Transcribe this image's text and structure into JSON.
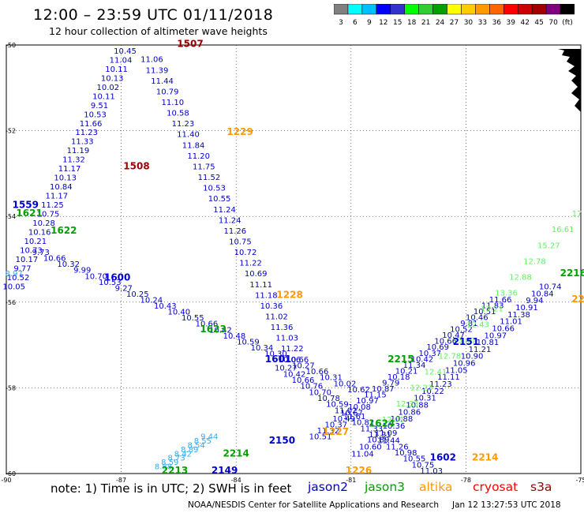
{
  "header": {
    "title": "12:00 – 23:59 UTC 01/11/2018",
    "subtitle": "12 hour collection of altimeter wave heights"
  },
  "colorbar": {
    "colors": [
      "#808080",
      "#00ffff",
      "#00bfff",
      "#0000ff",
      "#3333cc",
      "#00ff00",
      "#33cc33",
      "#00a000",
      "#ffff00",
      "#ffcc00",
      "#ff9900",
      "#ff6600",
      "#ff0000",
      "#cc0000",
      "#a00000",
      "#800080",
      "#000000"
    ],
    "labels": [
      "3",
      "6",
      "9",
      "12",
      "15",
      "18",
      "21",
      "24",
      "27",
      "30",
      "33",
      "36",
      "39",
      "42",
      "45",
      "70",
      "(ft)"
    ]
  },
  "map": {
    "lat_labels": [
      "-50",
      "-52",
      "-54",
      "-56",
      "-58",
      "-60"
    ],
    "lon_labels": [
      "-90",
      "-87",
      "-84",
      "-81",
      "-78",
      "-75"
    ],
    "lat_range": [
      -60,
      -50
    ],
    "lon_range": [
      -90,
      -75
    ]
  },
  "satellite_colors": {
    "jason2": "#0000cc",
    "jason3": "#00a000",
    "altika": "#ff9900",
    "cryosat": "#ff0000",
    "s3a": "#990000",
    "light_green": "#66ee66",
    "light_blue": "#33aaee"
  },
  "time_labels": [
    {
      "text": "1507",
      "lon": -85.2,
      "lat": -50.05,
      "sat": "s3a"
    },
    {
      "text": "1508",
      "lon": -86.6,
      "lat": -52.9,
      "sat": "s3a"
    },
    {
      "text": "1229",
      "lon": -83.9,
      "lat": -52.1,
      "sat": "altika"
    },
    {
      "text": "1228",
      "lon": -82.6,
      "lat": -55.9,
      "sat": "altika"
    },
    {
      "text": "1227",
      "lon": -81.4,
      "lat": -59.1,
      "sat": "altika"
    },
    {
      "text": "1226",
      "lon": -80.8,
      "lat": -60.0,
      "sat": "altika"
    },
    {
      "text": "2214",
      "lon": -77.5,
      "lat": -59.7,
      "sat": "altika"
    },
    {
      "text": "2215",
      "lon": -74.9,
      "lat": -56.0,
      "sat": "altika"
    },
    {
      "text": "1559",
      "lon": -89.5,
      "lat": -53.8,
      "sat": "jason2"
    },
    {
      "text": "1600",
      "lon": -87.1,
      "lat": -55.5,
      "sat": "jason2"
    },
    {
      "text": "1601",
      "lon": -82.9,
      "lat": -57.4,
      "sat": "jason2"
    },
    {
      "text": "1602",
      "lon": -78.6,
      "lat": -59.7,
      "sat": "jason2"
    },
    {
      "text": "2149",
      "lon": -84.3,
      "lat": -60.0,
      "sat": "jason2"
    },
    {
      "text": "2150",
      "lon": -82.8,
      "lat": -59.3,
      "sat": "jason2"
    },
    {
      "text": "2151",
      "lon": -78.0,
      "lat": -57.0,
      "sat": "jason2"
    },
    {
      "text": "1621",
      "lon": -89.4,
      "lat": -54.0,
      "sat": "jason3"
    },
    {
      "text": "1622",
      "lon": -88.5,
      "lat": -54.4,
      "sat": "jason3"
    },
    {
      "text": "1623",
      "lon": -84.6,
      "lat": -56.7,
      "sat": "jason3"
    },
    {
      "text": "1624",
      "lon": -80.2,
      "lat": -58.9,
      "sat": "jason3"
    },
    {
      "text": "2213",
      "lon": -85.6,
      "lat": -60.0,
      "sat": "jason3"
    },
    {
      "text": "2214",
      "lon": -84.0,
      "lat": -59.6,
      "sat": "jason3"
    },
    {
      "text": "2215",
      "lon": -79.7,
      "lat": -57.4,
      "sat": "jason3"
    },
    {
      "text": "2216",
      "lon": -75.2,
      "lat": -55.4,
      "sat": "jason3"
    }
  ],
  "tracks": [
    {
      "id": "s3a_ascending",
      "sat": "jason2",
      "start": [
        -89.8,
        -55.7
      ],
      "end": [
        -86.9,
        -50.2
      ],
      "values": [
        "10.05",
        "10.52",
        "9.77",
        "10.17",
        "10.73",
        "10.21",
        "10.16",
        "10.28",
        "10.75",
        "11.25",
        "11.17",
        "10.84",
        "10.13",
        "11.17",
        "11.32",
        "11.19",
        "11.33",
        "11.23",
        "11.66",
        "10.53",
        "9.51",
        "10.11",
        "10.02",
        "10.13",
        "10.11",
        "11.04",
        "10.45"
      ]
    },
    {
      "id": "s3a_descending",
      "sat": "jason2",
      "start": [
        -86.2,
        -50.4
      ],
      "end": [
        -82.4,
        -57.4
      ],
      "values": [
        "11.06",
        "11.39",
        "11.44",
        "10.79",
        "11.10",
        "10.58",
        "11.23",
        "11.40",
        "11.84",
        "11.20",
        "11.75",
        "11.52",
        "10.53",
        "10.55",
        "11.24",
        "11.24",
        "11.26",
        "10.75",
        "10.72",
        "11.22",
        "10.69",
        "11.11",
        "11.18",
        "10.36",
        "11.02",
        "11.36",
        "11.03",
        "11.22",
        "10.66"
      ]
    },
    {
      "id": "jason2_desc_a",
      "sat": "jason2",
      "start": [
        -89.1,
        -54.9
      ],
      "end": [
        -80.8,
        -58.1
      ],
      "values": [
        "9.73",
        "10.66",
        "10.32",
        "9.99",
        "10.70",
        "10.53",
        "9.27",
        "10.25",
        "10.24",
        "10.43",
        "10.40",
        "10.55",
        "10.66",
        "10.42",
        "10.48",
        "10.59",
        "10.34",
        "10.30",
        "10.06",
        "10.27",
        "10.66",
        "10.31",
        "10.02",
        "10.62"
      ]
    },
    {
      "id": "jason2_desc_b",
      "sat": "jason2",
      "start": [
        -82.7,
        -57.6
      ],
      "end": [
        -78.9,
        -60.0
      ],
      "values": [
        "10.27",
        "10.42",
        "10.66",
        "10.76",
        "10.70",
        "10.78",
        "10.59",
        "11.02",
        "11.61",
        "10.82",
        "11.33",
        "11.31",
        "11.44",
        "11.26",
        "10.98",
        "10.55",
        "10.75",
        "11.03"
      ]
    },
    {
      "id": "jason2_asc",
      "sat": "jason2",
      "start": [
        -81.8,
        -59.2
      ],
      "end": [
        -77.1,
        -56.0
      ],
      "values": [
        "10.51",
        "11.32",
        "10.37",
        "10.49",
        "10.67",
        "10.08",
        "10.97",
        "11.15",
        "10.87",
        "9.79",
        "10.18",
        "10.21",
        "11.34",
        "10.42",
        "10.37",
        "10.69",
        "10.66",
        "10.47",
        "10.52",
        "9.81",
        "10.46",
        "10.51",
        "11.83",
        "11.66"
      ]
    },
    {
      "id": "altika_asc",
      "sat": "jason2",
      "start": [
        -80.7,
        -59.6
      ],
      "end": [
        -75.8,
        -55.7
      ],
      "values": [
        "11.04",
        "10.60",
        "10.89",
        "11.09",
        "10.36",
        "10.88",
        "10.86",
        "10.88",
        "10.31",
        "10.22",
        "11.23",
        "11.11",
        "11.05",
        "10.96",
        "10.90",
        "11.21",
        "10.81",
        "10.97",
        "10.66",
        "11.01",
        "11.38",
        "10.91",
        "9.94",
        "10.84",
        "10.74"
      ]
    },
    {
      "id": "jason3_asc",
      "sat": "light_green",
      "start": [
        -79.9,
        -58.8
      ],
      "end": [
        -75.1,
        -54.0
      ],
      "values": [
        "12.01",
        "12.33",
        "12.23",
        "12.41",
        "12.78",
        "13.40",
        "12.43",
        "12.21",
        "13.36",
        "12.88",
        "12.78",
        "15.27",
        "16.61",
        "17"
      ]
    },
    {
      "id": "cryosat_asc",
      "sat": "light_blue",
      "start": [
        -85.9,
        -59.9
      ],
      "end": [
        -84.7,
        -59.2
      ],
      "values": [
        "8.88",
        "8.59",
        "8.73",
        "8.42",
        "8.89",
        "8.54",
        "8.55",
        "9.44"
      ]
    },
    {
      "id": "cryosat_left",
      "sat": "light_blue",
      "start": [
        -89.8,
        -55.4
      ],
      "end": [
        -89.8,
        -55.4
      ],
      "values": [
        "8.97"
      ]
    }
  ],
  "legend": {
    "note": "note:  1) Time is in UTC;  2) SWH is in feet",
    "sats": [
      {
        "name": "jason2",
        "color": "#0000cc"
      },
      {
        "name": "jason3",
        "color": "#00a000"
      },
      {
        "name": "altika",
        "color": "#ff9900"
      },
      {
        "name": "cryosat",
        "color": "#ff0000"
      },
      {
        "name": "s3a",
        "color": "#990000"
      }
    ]
  },
  "footer": {
    "credit": "NOAA/NESDIS Center for Satellite Applications and Research",
    "timestamp": "Jan 12 13:27:53 UTC 2018"
  }
}
